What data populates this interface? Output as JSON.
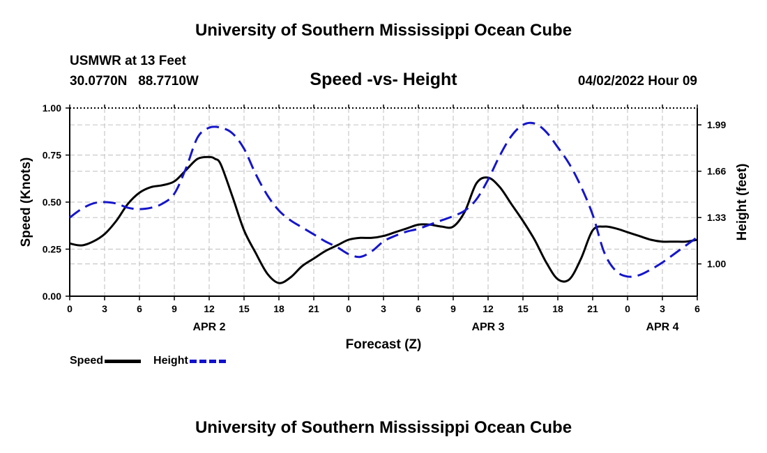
{
  "header": {
    "title": "University of Southern Mississippi Ocean Cube",
    "station_name": "USMWR at 13 Feet",
    "station_coords": "30.0770N   88.7710W",
    "subtitle": "Speed -vs- Height",
    "timestamp": "04/02/2022 Hour 09"
  },
  "footer": {
    "title": "University of Southern Mississippi Ocean Cube"
  },
  "legend": {
    "speed_label": "Speed",
    "height_label": "Height"
  },
  "colors": {
    "speed": "#000000",
    "height": "#1515cc",
    "grid": "#c8c8c8"
  },
  "chart_data": {
    "type": "line",
    "title": "Speed -vs- Height",
    "xlabel": "Forecast (Z)",
    "ylabel": "Speed (Knots)",
    "y2label": "Height (feet)",
    "xlim": [
      0,
      54
    ],
    "ylim": [
      0,
      1
    ],
    "y2lim": [
      0.77,
      2.11
    ],
    "x_ticks": [
      0,
      3,
      6,
      9,
      12,
      15,
      18,
      21,
      24,
      27,
      30,
      33,
      36,
      39,
      42,
      45,
      48,
      51,
      54
    ],
    "x_tick_labels": [
      "0",
      "3",
      "6",
      "9",
      "12",
      "15",
      "18",
      "21",
      "0",
      "3",
      "6",
      "9",
      "12",
      "15",
      "18",
      "21",
      "0",
      "3",
      "6"
    ],
    "date_labels": [
      {
        "x": 12,
        "label": "APR 2"
      },
      {
        "x": 36,
        "label": "APR 3"
      },
      {
        "x": 51,
        "label": "APR 4"
      }
    ],
    "y_ticks": [
      0,
      0.25,
      0.5,
      0.75,
      1.0
    ],
    "y_tick_labels": [
      "0.00",
      "0.25",
      "0.50",
      "0.75",
      "1.00"
    ],
    "y2_ticks": [
      1.0,
      1.33,
      1.66,
      1.99
    ],
    "y2_tick_labels": [
      "1.00",
      "1.33",
      "1.66",
      "1.99"
    ],
    "series": [
      {
        "name": "Speed",
        "axis": "left",
        "x": [
          0,
          1,
          2,
          3,
          4,
          5,
          6,
          7,
          8,
          9,
          10,
          11,
          12,
          12.5,
          13,
          14,
          15,
          16,
          17,
          18,
          19,
          20,
          21,
          22,
          23,
          24,
          25,
          26,
          27,
          28,
          29,
          30,
          31,
          32,
          33,
          34,
          35,
          36,
          37,
          38,
          39,
          40,
          41,
          42,
          43,
          44,
          45,
          46,
          47,
          48,
          49,
          50,
          51,
          52,
          53,
          54
        ],
        "values": [
          0.28,
          0.27,
          0.29,
          0.33,
          0.4,
          0.49,
          0.55,
          0.58,
          0.59,
          0.61,
          0.67,
          0.73,
          0.74,
          0.73,
          0.7,
          0.53,
          0.35,
          0.23,
          0.12,
          0.07,
          0.1,
          0.16,
          0.2,
          0.24,
          0.27,
          0.3,
          0.31,
          0.31,
          0.32,
          0.34,
          0.36,
          0.38,
          0.38,
          0.37,
          0.37,
          0.45,
          0.6,
          0.63,
          0.58,
          0.49,
          0.4,
          0.3,
          0.18,
          0.09,
          0.09,
          0.2,
          0.35,
          0.37,
          0.36,
          0.34,
          0.32,
          0.3,
          0.29,
          0.29,
          0.29,
          0.3
        ]
      },
      {
        "name": "Height",
        "axis": "right",
        "x": [
          0,
          1,
          2,
          3,
          4,
          5,
          6,
          7,
          8,
          9,
          10,
          11,
          12,
          13,
          14,
          15,
          16,
          17,
          18,
          19,
          20,
          21,
          22,
          23,
          24,
          25,
          26,
          27,
          28,
          29,
          30,
          31,
          32,
          33,
          34,
          35,
          36,
          37,
          38,
          39,
          40,
          41,
          42,
          43,
          44,
          45,
          46,
          47,
          48,
          49,
          50,
          51,
          52,
          53,
          54
        ],
        "values": [
          1.33,
          1.39,
          1.43,
          1.44,
          1.43,
          1.4,
          1.39,
          1.4,
          1.43,
          1.5,
          1.68,
          1.9,
          1.97,
          1.97,
          1.93,
          1.82,
          1.64,
          1.49,
          1.38,
          1.31,
          1.26,
          1.21,
          1.16,
          1.12,
          1.07,
          1.05,
          1.09,
          1.16,
          1.2,
          1.23,
          1.25,
          1.28,
          1.31,
          1.34,
          1.38,
          1.46,
          1.6,
          1.77,
          1.91,
          1.99,
          2.0,
          1.94,
          1.83,
          1.71,
          1.55,
          1.35,
          1.08,
          0.95,
          0.91,
          0.92,
          0.96,
          1.01,
          1.07,
          1.13,
          1.19
        ]
      }
    ]
  }
}
